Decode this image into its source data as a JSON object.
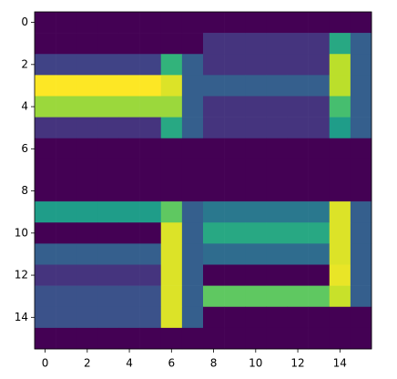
{
  "chart_data": {
    "type": "heatmap",
    "colormap": "viridis",
    "vlim": [
      0,
      1
    ],
    "xlim": [
      -0.5,
      15.5
    ],
    "ylim": [
      15.5,
      -0.5
    ],
    "xticks": [
      0,
      2,
      4,
      6,
      8,
      10,
      12,
      14
    ],
    "yticks": [
      0,
      2,
      4,
      6,
      8,
      10,
      12,
      14
    ],
    "values": [
      [
        0,
        0,
        0,
        0,
        0,
        0,
        0,
        0,
        0,
        0,
        0,
        0,
        0,
        0,
        0,
        0
      ],
      [
        0,
        0,
        0,
        0,
        0,
        0,
        0,
        0,
        0.15,
        0.15,
        0.15,
        0.15,
        0.15,
        0.15,
        0.6,
        0.3
      ],
      [
        0.2,
        0.2,
        0.2,
        0.2,
        0.2,
        0.2,
        0.65,
        0.3,
        0.15,
        0.15,
        0.15,
        0.15,
        0.15,
        0.15,
        0.9,
        0.3
      ],
      [
        1,
        1,
        1,
        1,
        1,
        1,
        0.95,
        0.3,
        0.3,
        0.3,
        0.3,
        0.3,
        0.3,
        0.3,
        0.9,
        0.3
      ],
      [
        0.85,
        0.85,
        0.85,
        0.85,
        0.85,
        0.85,
        0.85,
        0.3,
        0.15,
        0.15,
        0.15,
        0.15,
        0.15,
        0.15,
        0.7,
        0.3
      ],
      [
        0.15,
        0.15,
        0.15,
        0.15,
        0.15,
        0.15,
        0.6,
        0.3,
        0.15,
        0.15,
        0.15,
        0.15,
        0.15,
        0.15,
        0.55,
        0.3
      ],
      [
        0,
        0,
        0,
        0,
        0,
        0,
        0,
        0,
        0,
        0,
        0,
        0,
        0,
        0,
        0,
        0
      ],
      [
        0,
        0,
        0,
        0,
        0,
        0,
        0,
        0,
        0,
        0,
        0,
        0,
        0,
        0,
        0,
        0
      ],
      [
        0,
        0,
        0,
        0,
        0,
        0,
        0,
        0,
        0,
        0,
        0,
        0,
        0,
        0,
        0,
        0
      ],
      [
        0.55,
        0.55,
        0.55,
        0.55,
        0.55,
        0.55,
        0.75,
        0.3,
        0.4,
        0.4,
        0.4,
        0.4,
        0.4,
        0.4,
        0.95,
        0.3
      ],
      [
        0,
        0,
        0,
        0,
        0,
        0,
        0.95,
        0.3,
        0.6,
        0.6,
        0.6,
        0.6,
        0.6,
        0.6,
        0.95,
        0.3
      ],
      [
        0.3,
        0.3,
        0.3,
        0.3,
        0.3,
        0.3,
        0.95,
        0.3,
        0.35,
        0.35,
        0.35,
        0.35,
        0.35,
        0.35,
        0.95,
        0.3
      ],
      [
        0.15,
        0.15,
        0.15,
        0.15,
        0.15,
        0.15,
        0.95,
        0.3,
        0,
        0,
        0,
        0,
        0,
        0,
        0.97,
        0.3
      ],
      [
        0.25,
        0.25,
        0.25,
        0.25,
        0.25,
        0.25,
        0.95,
        0.3,
        0.75,
        0.75,
        0.75,
        0.75,
        0.75,
        0.75,
        0.92,
        0.3
      ],
      [
        0.25,
        0.25,
        0.25,
        0.25,
        0.25,
        0.25,
        0.95,
        0.3,
        0,
        0,
        0,
        0,
        0,
        0,
        0,
        0
      ],
      [
        0,
        0,
        0,
        0,
        0,
        0,
        0,
        0,
        0,
        0,
        0,
        0,
        0,
        0,
        0,
        0
      ]
    ]
  }
}
